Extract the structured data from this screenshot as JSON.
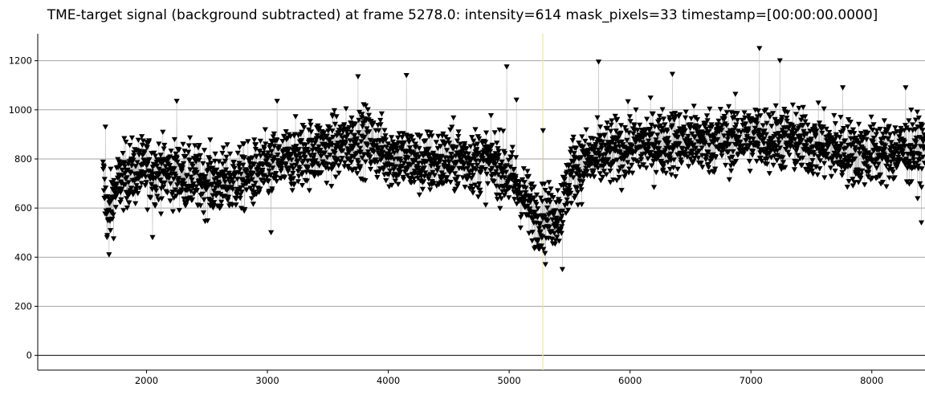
{
  "chart_data": {
    "type": "scatter",
    "title": "TME-target signal (background subtracted) at frame 5278.0: intensity=614 mask_pixels=33 timestamp=[00:00:00.0000]",
    "xlabel": "",
    "ylabel": "",
    "xlim": [
      1100,
      8440
    ],
    "ylim": [
      -60,
      1310
    ],
    "x_ticks": [
      2000,
      3000,
      4000,
      5000,
      6000,
      7000,
      8000
    ],
    "y_ticks": [
      0,
      200,
      400,
      600,
      800,
      1000,
      1200
    ],
    "grid": "horizontal",
    "marker": "downward-triangle",
    "marker_color": "#000000",
    "line_color": "#bdbdbd",
    "cursor_line": {
      "x": 5278,
      "color": "#e8e8a0"
    },
    "series": [
      {
        "x_start": 1640,
        "x_end": 8440,
        "trend": [
          [
            1640,
            720
          ],
          [
            1680,
            560
          ],
          [
            1720,
            640
          ],
          [
            1800,
            730
          ],
          [
            2000,
            760
          ],
          [
            2300,
            730
          ],
          [
            2600,
            700
          ],
          [
            2800,
            720
          ],
          [
            3000,
            760
          ],
          [
            3300,
            820
          ],
          [
            3600,
            850
          ],
          [
            3800,
            880
          ],
          [
            4000,
            820
          ],
          [
            4300,
            780
          ],
          [
            4600,
            800
          ],
          [
            4900,
            780
          ],
          [
            5050,
            700
          ],
          [
            5200,
            580
          ],
          [
            5300,
            560
          ],
          [
            5420,
            580
          ],
          [
            5520,
            760
          ],
          [
            5700,
            800
          ],
          [
            6000,
            850
          ],
          [
            6300,
            870
          ],
          [
            6600,
            870
          ],
          [
            7000,
            890
          ],
          [
            7300,
            880
          ],
          [
            7600,
            850
          ],
          [
            7900,
            820
          ],
          [
            8200,
            830
          ],
          [
            8440,
            840
          ]
        ],
        "spread": 95,
        "highlighted_peaks": [
          [
            1660,
            930
          ],
          [
            1690,
            410
          ],
          [
            2050,
            480
          ],
          [
            2250,
            1035
          ],
          [
            3030,
            500
          ],
          [
            3080,
            1035
          ],
          [
            3750,
            1135
          ],
          [
            4150,
            1140
          ],
          [
            4980,
            1175
          ],
          [
            5060,
            1040
          ],
          [
            5280,
            915
          ],
          [
            5300,
            370
          ],
          [
            5440,
            350
          ],
          [
            5740,
            1195
          ],
          [
            6350,
            1145
          ],
          [
            7070,
            1250
          ],
          [
            7240,
            1200
          ],
          [
            7760,
            1090
          ],
          [
            8280,
            1090
          ],
          [
            8410,
            540
          ]
        ]
      }
    ]
  }
}
